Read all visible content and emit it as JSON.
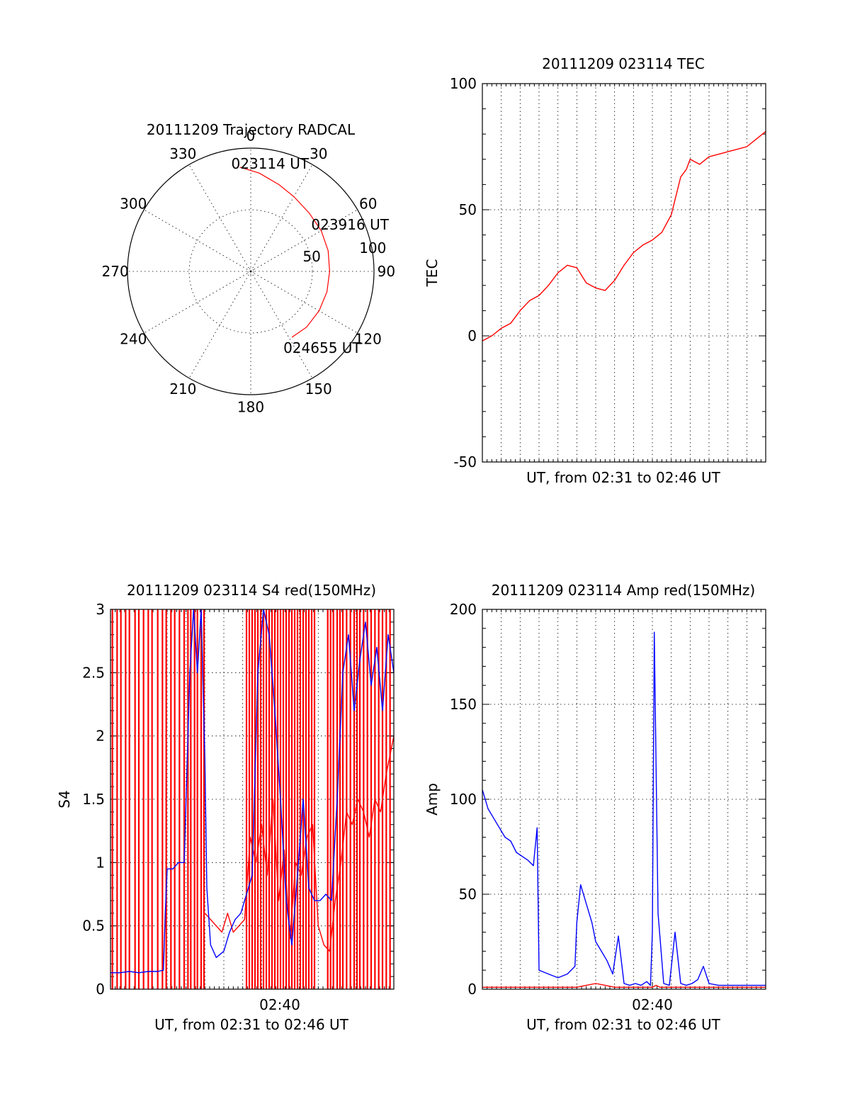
{
  "colors": {
    "red": "#ff0000",
    "blue": "#0000ff",
    "ink": "#000000"
  },
  "chart_data": [
    {
      "type": "polar",
      "id": "trajectory",
      "title": "20111209 Trajectory RADCAL",
      "angle_labels": [
        "0",
        "30",
        "60",
        "90",
        "120",
        "150",
        "180",
        "210",
        "240",
        "270",
        "300",
        "330"
      ],
      "radial_labels": [
        "50",
        "100"
      ],
      "rlim": [
        0,
        100
      ],
      "series": [
        {
          "color": "red",
          "points": [
            [
              -6,
              85
            ],
            [
              5,
              80
            ],
            [
              18,
              74
            ],
            [
              30,
              70
            ],
            [
              45,
              67
            ],
            [
              60,
              66
            ],
            [
              75,
              65
            ],
            [
              90,
              64
            ],
            [
              105,
              64
            ],
            [
              120,
              64
            ],
            [
              135,
              64
            ],
            [
              148,
              63
            ]
          ]
        }
      ],
      "annotations": [
        {
          "text": "023114 UT",
          "az": -6,
          "r": 85
        },
        {
          "text": "023916 UT",
          "az": 58,
          "r": 66
        },
        {
          "text": "024655 UT",
          "az": 148,
          "r": 63
        }
      ]
    },
    {
      "type": "line",
      "id": "tec",
      "title": "20111209 023114 TEC",
      "xlabel": "UT, from 02:31 to 02:46 UT",
      "ylabel": "TEC",
      "xlim": [
        0,
        15
      ],
      "ylim": [
        -50,
        100
      ],
      "yticks": [
        "100",
        "50",
        "0",
        "-50"
      ],
      "series": [
        {
          "color": "red",
          "x": [
            0,
            0.5,
            1,
            1.5,
            2,
            2.5,
            3,
            3.5,
            4,
            4.5,
            5,
            5.5,
            6,
            6.5,
            7,
            7.5,
            8,
            8.5,
            9,
            9.5,
            10,
            10.5,
            10.8,
            11,
            11.5,
            12,
            12.5,
            13,
            13.5,
            14,
            14.5,
            15
          ],
          "y": [
            -2,
            0,
            3,
            5,
            10,
            14,
            16,
            20,
            25,
            28,
            27,
            21,
            19,
            18,
            22,
            28,
            33,
            36,
            38,
            41,
            48,
            63,
            66,
            70,
            68,
            71,
            72,
            73,
            74,
            75,
            78,
            81
          ]
        }
      ]
    },
    {
      "type": "line",
      "id": "s4",
      "title": "20111209 023114 S4 red(150MHz)",
      "xlabel": "UT, from 02:31 to 02:46 UT",
      "ylabel": "S4",
      "xlim": [
        0,
        15
      ],
      "ylim": [
        0,
        3
      ],
      "yticks": [
        "0",
        "0.5",
        "1",
        "1.5",
        "2",
        "2.5",
        "3"
      ],
      "xtick_label": "02:40",
      "xtick_at": 9,
      "red_spikes": [
        0.1,
        0.35,
        0.55,
        0.8,
        1.0,
        1.3,
        1.5,
        1.75,
        2.0,
        2.2,
        2.5,
        2.75,
        2.95,
        3.2,
        3.4,
        3.65,
        3.9,
        4.1,
        4.25,
        4.45,
        4.6,
        4.8,
        4.95,
        7.2,
        7.35,
        7.5,
        7.65,
        7.8,
        7.95,
        8.1,
        8.25,
        8.4,
        8.55,
        8.7,
        8.85,
        9.0,
        9.15,
        9.3,
        9.45,
        9.6,
        9.75,
        9.9,
        10.05,
        10.2,
        10.35,
        10.5,
        10.65,
        10.8,
        11.5,
        11.65,
        11.8,
        12.0,
        12.15,
        12.3,
        12.5,
        12.7,
        12.9,
        13.05,
        13.2,
        13.4,
        13.6,
        13.8,
        14.0,
        14.2,
        14.4,
        14.6,
        14.8
      ],
      "series": [
        {
          "name": "",
          "color": "blue",
          "x": [
            0,
            0.5,
            1,
            1.5,
            2,
            2.5,
            2.8,
            2.9,
            3.0,
            3.3,
            3.6,
            3.9,
            4.0,
            4.2,
            4.4,
            4.6,
            4.8,
            5.0,
            5.1,
            5.3,
            5.6,
            6.0,
            6.3,
            6.6,
            6.9,
            7.2,
            7.5,
            7.8,
            8.1,
            8.4,
            8.7,
            9.0,
            9.3,
            9.6,
            9.9,
            10.2,
            10.5,
            10.8,
            11.1,
            11.4,
            11.7,
            12.0,
            12.3,
            12.6,
            12.9,
            13.2,
            13.5,
            13.8,
            14.1,
            14.4,
            14.7,
            15
          ],
          "y": [
            0.13,
            0.13,
            0.14,
            0.13,
            0.14,
            0.14,
            0.15,
            0.6,
            0.95,
            0.95,
            1.0,
            1.0,
            1.5,
            2.5,
            3.0,
            2.5,
            3.0,
            1.8,
            0.8,
            0.35,
            0.25,
            0.3,
            0.45,
            0.55,
            0.6,
            0.75,
            0.9,
            2.5,
            3.0,
            2.8,
            2.2,
            1.5,
            0.7,
            0.35,
            0.9,
            1.5,
            0.8,
            0.7,
            0.7,
            0.75,
            0.7,
            1.5,
            2.5,
            2.8,
            2.2,
            2.6,
            2.9,
            2.4,
            2.7,
            2.2,
            2.8,
            2.5
          ]
        },
        {
          "name": "",
          "color": "red",
          "x": [
            5.0,
            5.3,
            5.6,
            5.9,
            6.2,
            6.5,
            6.8,
            7.1,
            7.4,
            7.7,
            8.0,
            8.3,
            8.6,
            8.9,
            9.2,
            9.5,
            9.8,
            10.1,
            10.4,
            10.7,
            11.0,
            11.3,
            11.6,
            11.9,
            12.2,
            12.5,
            12.8,
            13.1,
            13.4,
            13.7,
            14.0,
            14.3,
            14.6,
            15
          ],
          "y": [
            0.6,
            0.55,
            0.5,
            0.45,
            0.6,
            0.45,
            0.5,
            0.55,
            1.2,
            1.0,
            1.3,
            0.9,
            1.5,
            0.7,
            1.1,
            0.4,
            1.0,
            0.9,
            1.2,
            1.3,
            0.5,
            0.35,
            0.3,
            0.7,
            1.0,
            1.4,
            1.3,
            1.5,
            1.4,
            1.2,
            1.5,
            1.4,
            1.7,
            2.0
          ]
        }
      ]
    },
    {
      "type": "line",
      "id": "amp",
      "title": "20111209 023114 Amp red(150MHz)",
      "xlabel": "UT, from 02:31 to 02:46 UT",
      "ylabel": "Amp",
      "xlim": [
        0,
        15
      ],
      "ylim": [
        0,
        200
      ],
      "yticks": [
        "0",
        "50",
        "100",
        "150",
        "200"
      ],
      "xtick_label": "02:40",
      "xtick_at": 9,
      "series": [
        {
          "name": "",
          "color": "blue",
          "x": [
            0,
            0.3,
            0.6,
            0.9,
            1.2,
            1.5,
            1.8,
            2.1,
            2.4,
            2.7,
            2.9,
            3.0,
            3.5,
            4.0,
            4.5,
            4.9,
            5.0,
            5.2,
            5.5,
            5.8,
            6.0,
            6.3,
            6.6,
            6.9,
            7.2,
            7.5,
            7.8,
            8.1,
            8.4,
            8.7,
            8.9,
            9.0,
            9.1,
            9.3,
            9.6,
            9.9,
            10.2,
            10.5,
            10.8,
            11.1,
            11.4,
            11.7,
            12.0,
            12.5,
            13.0,
            13.5,
            14.0,
            14.5,
            15
          ],
          "y": [
            105,
            95,
            90,
            85,
            80,
            78,
            72,
            70,
            68,
            65,
            85,
            10,
            8,
            6,
            8,
            12,
            35,
            55,
            45,
            35,
            25,
            20,
            15,
            8,
            28,
            3,
            2,
            3,
            2,
            4,
            2,
            30,
            188,
            40,
            3,
            2,
            30,
            3,
            2,
            3,
            5,
            12,
            3,
            2,
            2,
            2,
            2,
            2,
            2
          ]
        },
        {
          "name": "",
          "color": "red",
          "x": [
            0,
            3,
            5,
            5.5,
            6,
            6.5,
            7,
            7.5,
            8,
            9,
            9.2,
            9.4,
            10,
            12,
            15
          ],
          "y": [
            1,
            1,
            1,
            2,
            3,
            2,
            1,
            1,
            1,
            1,
            2,
            1,
            1,
            1,
            1
          ]
        }
      ]
    }
  ]
}
